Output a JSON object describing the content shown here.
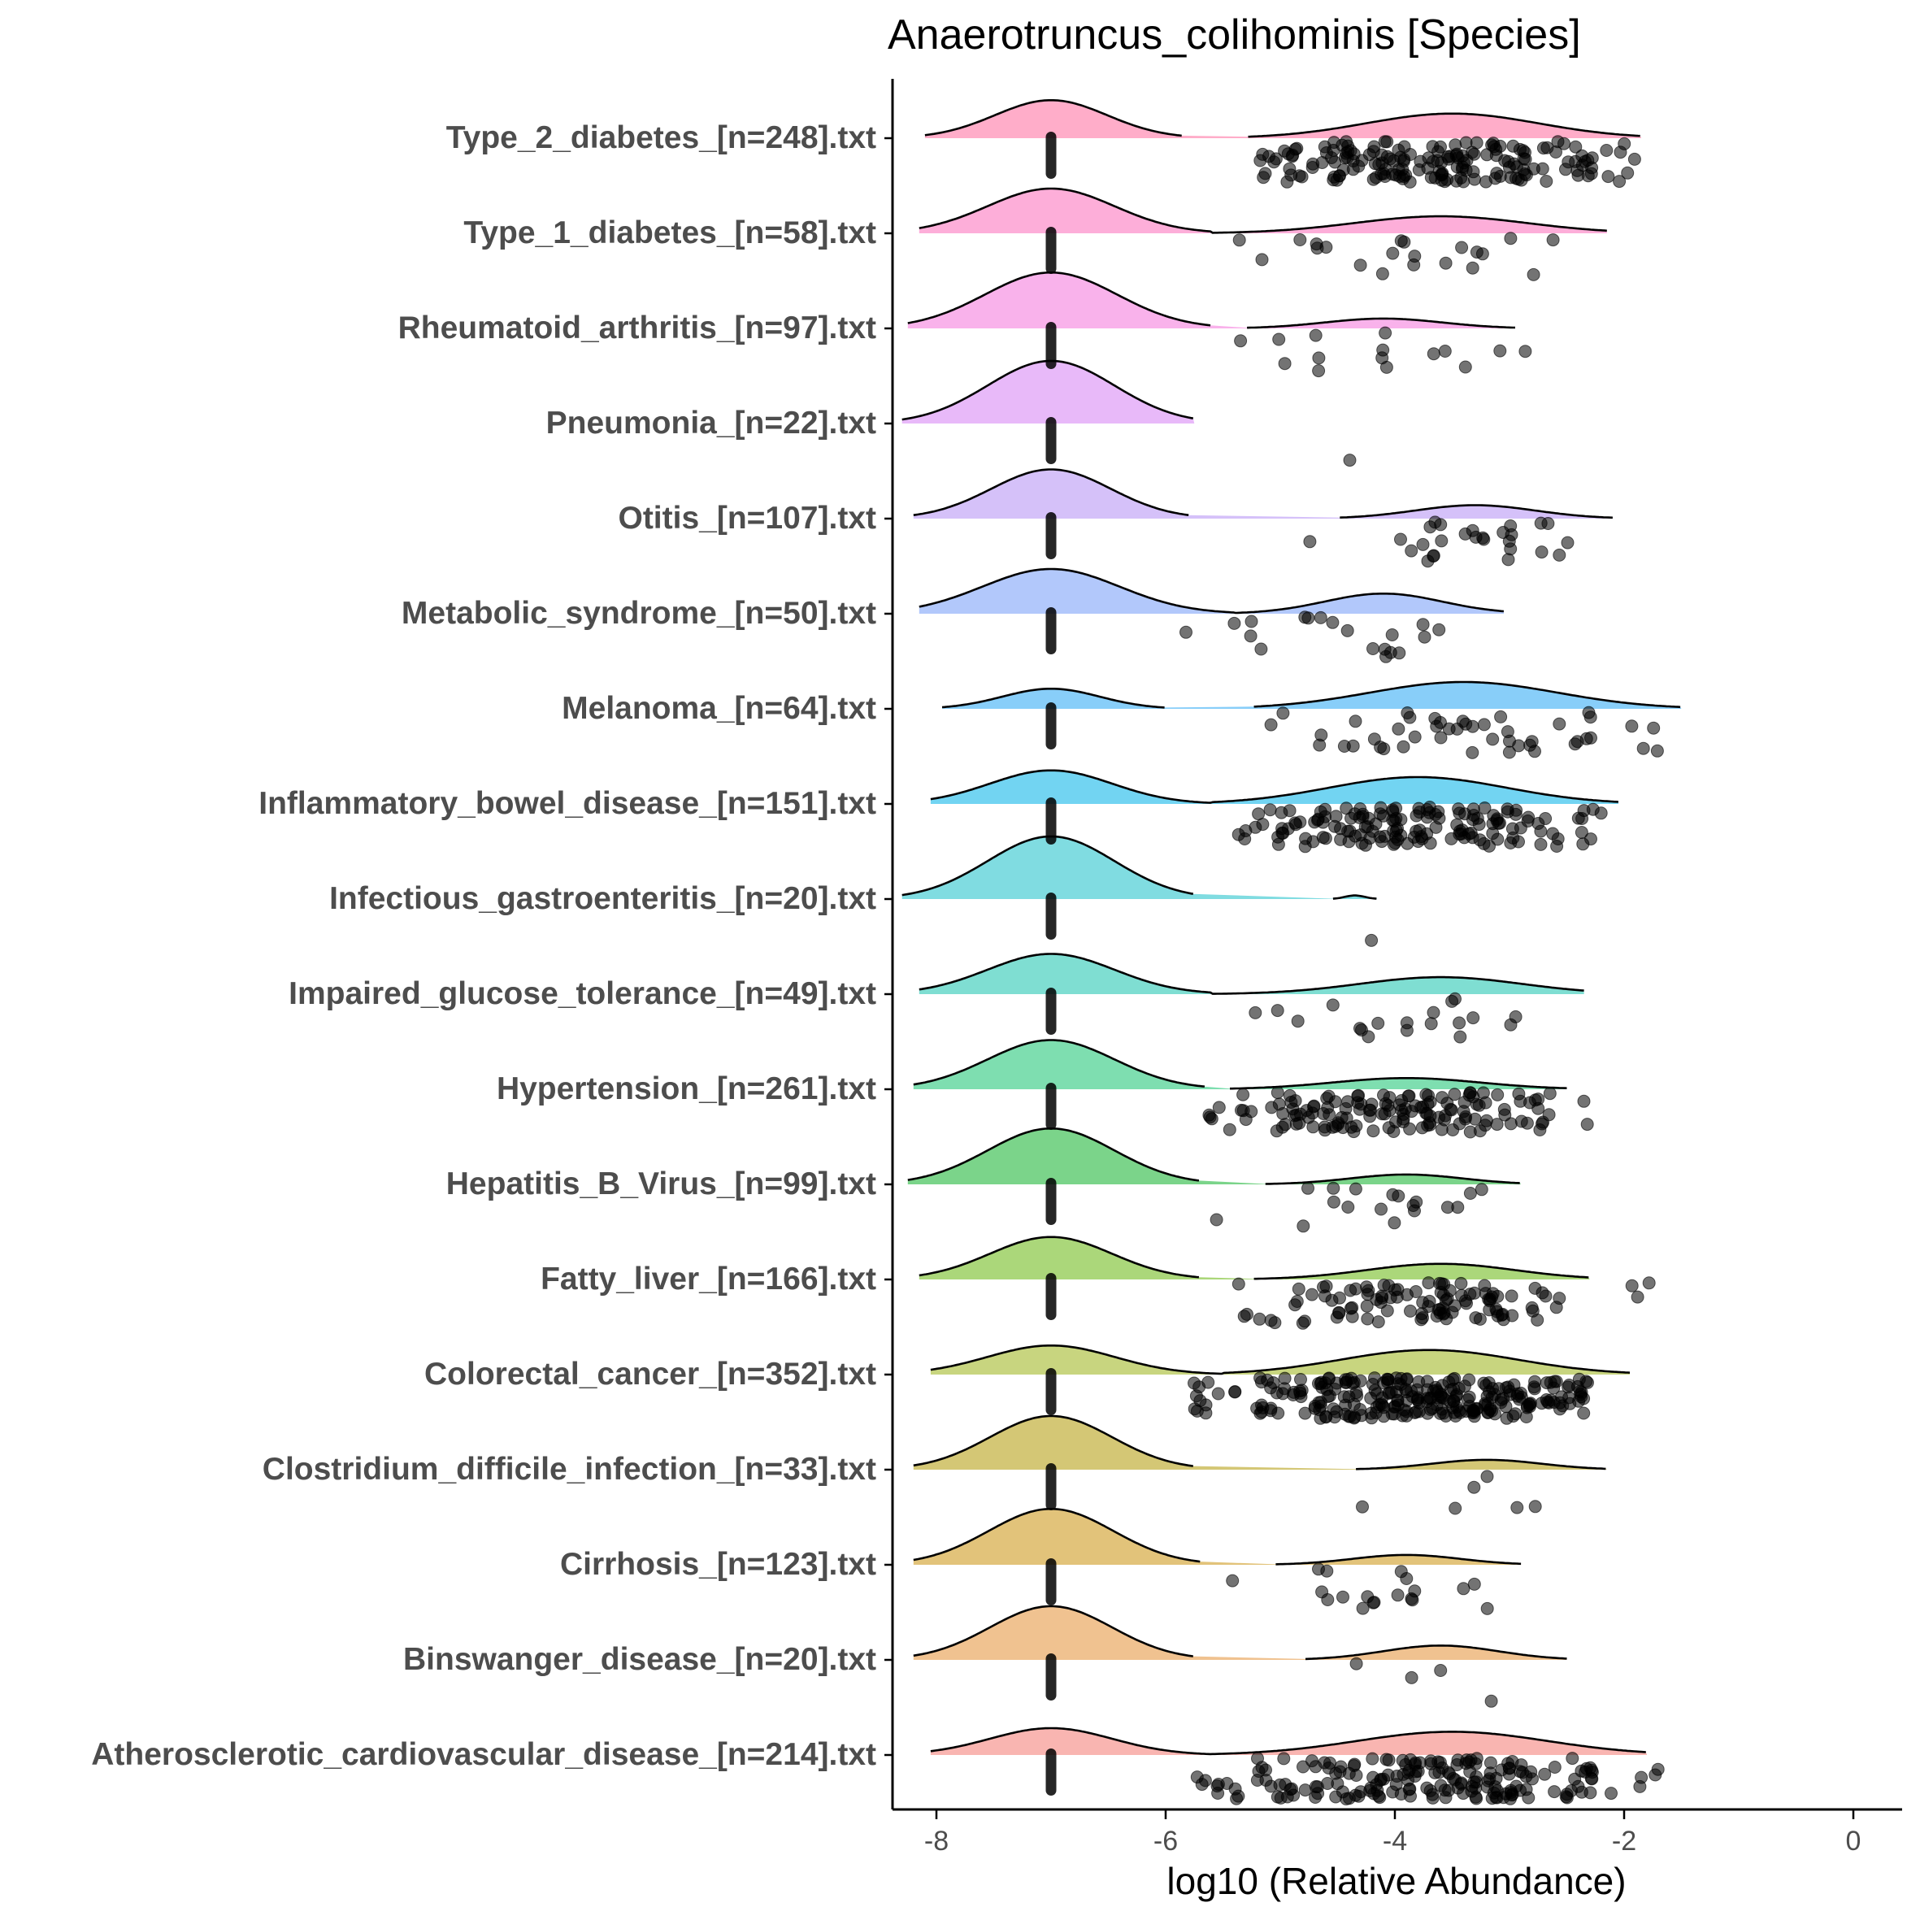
{
  "chart_data": {
    "type": "ridgeline",
    "title": "Anaerotruncus_colihominis [Species]",
    "xlabel": "log10 (Relative Abundance)",
    "ylabel": "",
    "xlim": [
      -8.6,
      0.7
    ],
    "x_ticks": [
      -8,
      -6,
      -4,
      -2,
      0
    ],
    "x_tick_labels": [
      "-8",
      "-6",
      "-4",
      "-2",
      "0"
    ],
    "grid": false,
    "legend": "none",
    "series": [
      {
        "name": "Type_2_diabetes_[n=248].txt",
        "color": "#FFADC9",
        "ridge": {
          "main": {
            "from": -8.1,
            "to": -5.85,
            "center": -7.0,
            "height": 0.85
          },
          "tail": {
            "from": -5.3,
            "to": -1.85,
            "center": -3.5,
            "height": 0.55
          }
        },
        "points": [
          {
            "x": -5.0,
            "count": 18
          },
          {
            "x": -4.5,
            "count": 28
          },
          {
            "x": -4.0,
            "count": 35
          },
          {
            "x": -3.5,
            "count": 40
          },
          {
            "x": -3.0,
            "count": 30
          },
          {
            "x": -2.5,
            "count": 20
          },
          {
            "x": -2.1,
            "count": 8
          }
        ]
      },
      {
        "name": "Type_1_diabetes_[n=58].txt",
        "color": "#FDAED9",
        "ridge": {
          "main": {
            "from": -8.15,
            "to": -5.6,
            "center": -7.0,
            "height": 1.0
          },
          "tail": {
            "from": -5.6,
            "to": -2.15,
            "center": -3.6,
            "height": 0.38
          }
        },
        "points": [
          {
            "x": -5.2,
            "count": 2
          },
          {
            "x": -4.9,
            "count": 1
          },
          {
            "x": -4.5,
            "count": 3
          },
          {
            "x": -4.1,
            "count": 4
          },
          {
            "x": -3.7,
            "count": 4
          },
          {
            "x": -3.2,
            "count": 4
          },
          {
            "x": -2.8,
            "count": 3
          }
        ]
      },
      {
        "name": "Rheumatoid_arthritis_[n=97].txt",
        "color": "#F9B2EB",
        "ridge": {
          "main": {
            "from": -8.25,
            "to": -5.6,
            "center": -7.0,
            "height": 1.25
          },
          "tail": {
            "from": -5.3,
            "to": -2.95,
            "center": -4.1,
            "height": 0.22
          }
        },
        "points": [
          {
            "x": -5.15,
            "count": 3
          },
          {
            "x": -4.6,
            "count": 3
          },
          {
            "x": -4.1,
            "count": 4
          },
          {
            "x": -3.5,
            "count": 3
          },
          {
            "x": -3.0,
            "count": 2
          }
        ]
      },
      {
        "name": "Pneumonia_[n=22].txt",
        "color": "#E8B9F9",
        "ridge": {
          "main": {
            "from": -8.3,
            "to": -5.75,
            "center": -7.0,
            "height": 1.4
          },
          "tail": null
        },
        "points": [
          {
            "x": -4.35,
            "count": 1
          }
        ]
      },
      {
        "name": "Otitis_[n=107].txt",
        "color": "#D5C1F9",
        "ridge": {
          "main": {
            "from": -8.2,
            "to": -5.8,
            "center": -7.0,
            "height": 1.1
          },
          "tail": {
            "from": -4.5,
            "to": -2.1,
            "center": -3.3,
            "height": 0.3
          }
        },
        "points": [
          {
            "x": -4.95,
            "count": 1
          },
          {
            "x": -3.9,
            "count": 5
          },
          {
            "x": -3.5,
            "count": 8
          },
          {
            "x": -3.1,
            "count": 8
          },
          {
            "x": -2.7,
            "count": 5
          }
        ]
      },
      {
        "name": "Metabolic_syndrome_[n=50].txt",
        "color": "#B2C8FB",
        "ridge": {
          "main": {
            "from": -8.15,
            "to": -5.4,
            "center": -7.0,
            "height": 1.0
          },
          "tail": {
            "from": -5.4,
            "to": -3.05,
            "center": -4.1,
            "height": 0.45
          }
        },
        "points": [
          {
            "x": -5.6,
            "count": 2
          },
          {
            "x": -5.2,
            "count": 3
          },
          {
            "x": -4.8,
            "count": 3
          },
          {
            "x": -4.35,
            "count": 2
          },
          {
            "x": -4.0,
            "count": 6
          },
          {
            "x": -3.8,
            "count": 3
          }
        ]
      },
      {
        "name": "Melanoma_[n=64].txt",
        "color": "#88CEF9",
        "ridge": {
          "main": {
            "from": -7.95,
            "to": -6.0,
            "center": -7.0,
            "height": 0.45
          },
          "tail": {
            "from": -5.25,
            "to": -1.5,
            "center": -3.4,
            "height": 0.6
          }
        },
        "points": [
          {
            "x": -5.0,
            "count": 2
          },
          {
            "x": -4.5,
            "count": 5
          },
          {
            "x": -4.0,
            "count": 8
          },
          {
            "x": -3.5,
            "count": 10
          },
          {
            "x": -3.0,
            "count": 10
          },
          {
            "x": -2.5,
            "count": 7
          },
          {
            "x": -1.8,
            "count": 4
          }
        ]
      },
      {
        "name": "Inflammatory_bowel_disease_[n=151].txt",
        "color": "#72D4F2",
        "ridge": {
          "main": {
            "from": -8.05,
            "to": -5.6,
            "center": -7.0,
            "height": 0.75
          },
          "tail": {
            "from": -5.6,
            "to": -2.05,
            "center": -3.8,
            "height": 0.6
          }
        },
        "points": [
          {
            "x": -5.2,
            "count": 10
          },
          {
            "x": -4.8,
            "count": 20
          },
          {
            "x": -4.3,
            "count": 30
          },
          {
            "x": -3.8,
            "count": 35
          },
          {
            "x": -3.3,
            "count": 30
          },
          {
            "x": -2.8,
            "count": 18
          },
          {
            "x": -2.4,
            "count": 8
          }
        ]
      },
      {
        "name": "Infectious_gastroenteritis_[n=20].txt",
        "color": "#80DCE1",
        "ridge": {
          "main": {
            "from": -8.3,
            "to": -5.75,
            "center": -7.0,
            "height": 1.4
          },
          "tail": {
            "from": -4.55,
            "to": -4.15,
            "center": -4.35,
            "height": 0.08
          }
        },
        "points": [
          {
            "x": -4.3,
            "count": 1
          }
        ]
      },
      {
        "name": "Impaired_glucose_tolerance_[n=49].txt",
        "color": "#7FDED2",
        "ridge": {
          "main": {
            "from": -8.15,
            "to": -5.6,
            "center": -7.0,
            "height": 0.9
          },
          "tail": {
            "from": -5.6,
            "to": -2.35,
            "center": -3.6,
            "height": 0.38
          }
        },
        "points": [
          {
            "x": -5.2,
            "count": 2
          },
          {
            "x": -4.9,
            "count": 1
          },
          {
            "x": -4.5,
            "count": 2
          },
          {
            "x": -4.1,
            "count": 4
          },
          {
            "x": -3.7,
            "count": 4
          },
          {
            "x": -3.3,
            "count": 4
          },
          {
            "x": -3.0,
            "count": 2
          }
        ]
      },
      {
        "name": "Hypertension_[n=261].txt",
        "color": "#7EDEB0",
        "ridge": {
          "main": {
            "from": -8.2,
            "to": -5.65,
            "center": -7.0,
            "height": 1.1
          },
          "tail": {
            "from": -5.45,
            "to": -2.5,
            "center": -3.9,
            "height": 0.25
          }
        },
        "points": [
          {
            "x": -5.4,
            "count": 10
          },
          {
            "x": -4.9,
            "count": 22
          },
          {
            "x": -4.4,
            "count": 30
          },
          {
            "x": -3.9,
            "count": 35
          },
          {
            "x": -3.4,
            "count": 28
          },
          {
            "x": -2.9,
            "count": 15
          },
          {
            "x": -2.5,
            "count": 5
          }
        ]
      },
      {
        "name": "Hepatitis_B_Virus_[n=99].txt",
        "color": "#7BD48A",
        "ridge": {
          "main": {
            "from": -8.25,
            "to": -5.7,
            "center": -7.0,
            "height": 1.25
          },
          "tail": {
            "from": -5.15,
            "to": -2.9,
            "center": -3.9,
            "height": 0.22
          }
        },
        "points": [
          {
            "x": -5.35,
            "count": 1
          },
          {
            "x": -4.6,
            "count": 4
          },
          {
            "x": -4.2,
            "count": 4
          },
          {
            "x": -3.8,
            "count": 5
          },
          {
            "x": -3.4,
            "count": 4
          }
        ]
      },
      {
        "name": "Fatty_liver_[n=166].txt",
        "color": "#ABD77A",
        "ridge": {
          "main": {
            "from": -8.15,
            "to": -5.7,
            "center": -7.0,
            "height": 0.95
          },
          "tail": {
            "from": -5.25,
            "to": -2.3,
            "center": -3.6,
            "height": 0.35
          }
        },
        "points": [
          {
            "x": -5.2,
            "count": 6
          },
          {
            "x": -4.7,
            "count": 14
          },
          {
            "x": -4.2,
            "count": 22
          },
          {
            "x": -3.7,
            "count": 28
          },
          {
            "x": -3.2,
            "count": 25
          },
          {
            "x": -2.7,
            "count": 8
          },
          {
            "x": -2.0,
            "count": 3
          }
        ]
      },
      {
        "name": "Colorectal_cancer_[n=352].txt",
        "color": "#C8D57F",
        "ridge": {
          "main": {
            "from": -8.05,
            "to": -5.5,
            "center": -7.0,
            "height": 0.65
          },
          "tail": {
            "from": -5.5,
            "to": -1.95,
            "center": -3.7,
            "height": 0.55
          }
        },
        "points": [
          {
            "x": -5.6,
            "count": 12
          },
          {
            "x": -5.0,
            "count": 25
          },
          {
            "x": -4.5,
            "count": 45
          },
          {
            "x": -4.0,
            "count": 55
          },
          {
            "x": -3.5,
            "count": 55
          },
          {
            "x": -3.0,
            "count": 45
          },
          {
            "x": -2.5,
            "count": 30
          }
        ]
      },
      {
        "name": "Clostridium_difficile_infection_[n=33].txt",
        "color": "#D4C775",
        "ridge": {
          "main": {
            "from": -8.2,
            "to": -5.75,
            "center": -7.0,
            "height": 1.2
          },
          "tail": {
            "from": -4.35,
            "to": -2.15,
            "center": -3.2,
            "height": 0.22
          }
        },
        "points": [
          {
            "x": -4.5,
            "count": 1
          },
          {
            "x": -3.3,
            "count": 3
          },
          {
            "x": -2.75,
            "count": 2
          }
        ]
      },
      {
        "name": "Cirrhosis_[n=123].txt",
        "color": "#E2C37A",
        "ridge": {
          "main": {
            "from": -8.2,
            "to": -5.7,
            "center": -7.0,
            "height": 1.25
          },
          "tail": {
            "from": -5.05,
            "to": -2.9,
            "center": -3.9,
            "height": 0.22
          }
        },
        "points": [
          {
            "x": -5.35,
            "count": 1
          },
          {
            "x": -4.8,
            "count": 4
          },
          {
            "x": -4.3,
            "count": 5
          },
          {
            "x": -3.8,
            "count": 6
          },
          {
            "x": -3.2,
            "count": 3
          }
        ]
      },
      {
        "name": "Binswanger_disease_[n=20].txt",
        "color": "#F0C290",
        "ridge": {
          "main": {
            "from": -8.2,
            "to": -5.75,
            "center": -7.0,
            "height": 1.2
          },
          "tail": {
            "from": -4.8,
            "to": -2.5,
            "center": -3.6,
            "height": 0.32
          }
        },
        "points": [
          {
            "x": -4.35,
            "count": 1
          },
          {
            "x": -3.65,
            "count": 2
          },
          {
            "x": -3.05,
            "count": 1
          }
        ]
      },
      {
        "name": "Atherosclerotic_cardiovascular_disease_[n=214].txt",
        "color": "#F9B5B1",
        "ridge": {
          "main": {
            "from": -8.05,
            "to": -5.6,
            "center": -7.0,
            "height": 0.6
          },
          "tail": {
            "from": -5.6,
            "to": -1.8,
            "center": -3.5,
            "height": 0.52
          }
        },
        "points": [
          {
            "x": -5.5,
            "count": 10
          },
          {
            "x": -5.0,
            "count": 18
          },
          {
            "x": -4.5,
            "count": 25
          },
          {
            "x": -4.0,
            "count": 35
          },
          {
            "x": -3.5,
            "count": 40
          },
          {
            "x": -3.0,
            "count": 35
          },
          {
            "x": -2.5,
            "count": 20
          },
          {
            "x": -1.9,
            "count": 5
          }
        ]
      }
    ],
    "zero_value": -7,
    "point_color": "#000000"
  }
}
